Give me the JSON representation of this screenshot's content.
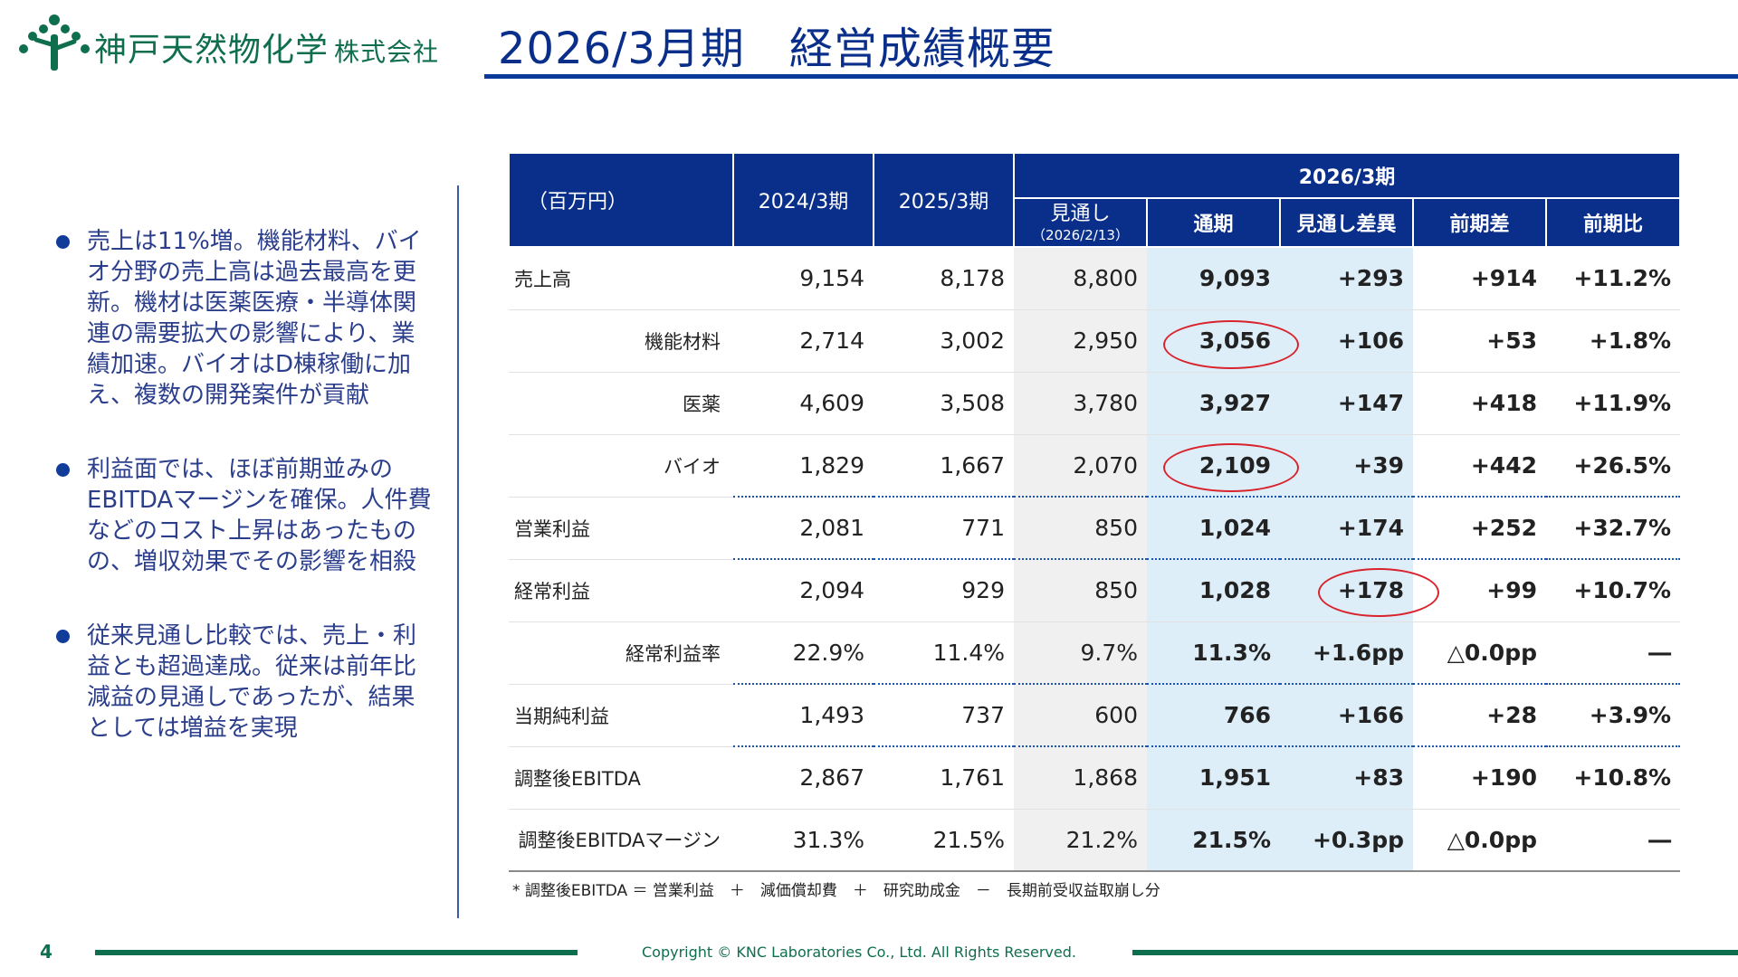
{
  "company": {
    "name": "神戸天然物化学",
    "suffix": "株式会社"
  },
  "title": "2026/3月期　経営成績概要",
  "bullets": [
    "売上は11%増。機能材料、バイオ分野の売上高は過去最高を更新。機材は医薬医療・半導体関連の需要拡大の影響により、業績加速。バイオはD棟稼働に加え、複数の開発案件が貢献",
    "利益面では、ほぼ前期並みのEBITDAマージンを確保。人件費などのコスト上昇はあったものの、増収効果でその影響を相殺",
    "従来見通し比較では、売上・利益とも超過達成。従来は前年比減益の見通しであったが、結果としては増益を実現"
  ],
  "table": {
    "unit": "（百万円）",
    "col_2024": "2024/3期",
    "col_2025": "2025/3期",
    "group_2026": "2026/3期",
    "col_forecast": "見通し",
    "col_forecast_date": "（2026/2/13）",
    "col_full": "通期",
    "col_vs_forecast": "見通し差異",
    "col_yoy_diff": "前期差",
    "col_yoy_ratio": "前期比",
    "rows": [
      {
        "label": "売上高",
        "v2024": "9,154",
        "v2025": "8,178",
        "forecast": "8,800",
        "full": "9,093",
        "vs_forecast": "+293",
        "yoy_diff": "+914",
        "yoy_ratio": "+11.2%"
      },
      {
        "label": "機能材料",
        "v2024": "2,714",
        "v2025": "3,002",
        "forecast": "2,950",
        "full": "3,056",
        "vs_forecast": "+106",
        "yoy_diff": "+53",
        "yoy_ratio": "+1.8%"
      },
      {
        "label": "医薬",
        "v2024": "4,609",
        "v2025": "3,508",
        "forecast": "3,780",
        "full": "3,927",
        "vs_forecast": "+147",
        "yoy_diff": "+418",
        "yoy_ratio": "+11.9%"
      },
      {
        "label": "バイオ",
        "v2024": "1,829",
        "v2025": "1,667",
        "forecast": "2,070",
        "full": "2,109",
        "vs_forecast": "+39",
        "yoy_diff": "+442",
        "yoy_ratio": "+26.5%"
      },
      {
        "label": "営業利益",
        "v2024": "2,081",
        "v2025": "771",
        "forecast": "850",
        "full": "1,024",
        "vs_forecast": "+174",
        "yoy_diff": "+252",
        "yoy_ratio": "+32.7%"
      },
      {
        "label": "経常利益",
        "v2024": "2,094",
        "v2025": "929",
        "forecast": "850",
        "full": "1,028",
        "vs_forecast": "+178",
        "yoy_diff": "+99",
        "yoy_ratio": "+10.7%"
      },
      {
        "label": "経常利益率",
        "v2024": "22.9%",
        "v2025": "11.4%",
        "forecast": "9.7%",
        "full": "11.3%",
        "vs_forecast": "+1.6pp",
        "yoy_diff": "△0.0pp",
        "yoy_ratio": "―"
      },
      {
        "label": "当期純利益",
        "v2024": "1,493",
        "v2025": "737",
        "forecast": "600",
        "full": "766",
        "vs_forecast": "+166",
        "yoy_diff": "+28",
        "yoy_ratio": "+3.9%"
      },
      {
        "label": "調整後EBITDA",
        "v2024": "2,867",
        "v2025": "1,761",
        "forecast": "1,868",
        "full": "1,951",
        "vs_forecast": "+83",
        "yoy_diff": "+190",
        "yoy_ratio": "+10.8%"
      },
      {
        "label": "調整後EBITDAマージン",
        "v2024": "31.3%",
        "v2025": "21.5%",
        "forecast": "21.2%",
        "full": "21.5%",
        "vs_forecast": "+0.3pp",
        "yoy_diff": "△0.0pp",
        "yoy_ratio": "―"
      }
    ]
  },
  "footnote": "*  調整後EBITDA ＝ 営業利益　＋　減価償却費　＋　研究助成金　－　長期前受収益取崩し分",
  "footer": {
    "page_number": "4",
    "copyright": "Copyright © KNC Laboratories Co., Ltd. All Rights Reserved."
  },
  "colors": {
    "navy": "#0a2f8a",
    "green": "#0f6e4e",
    "highlight_blue": "#ddeef9",
    "circle_red": "#d9232d"
  }
}
